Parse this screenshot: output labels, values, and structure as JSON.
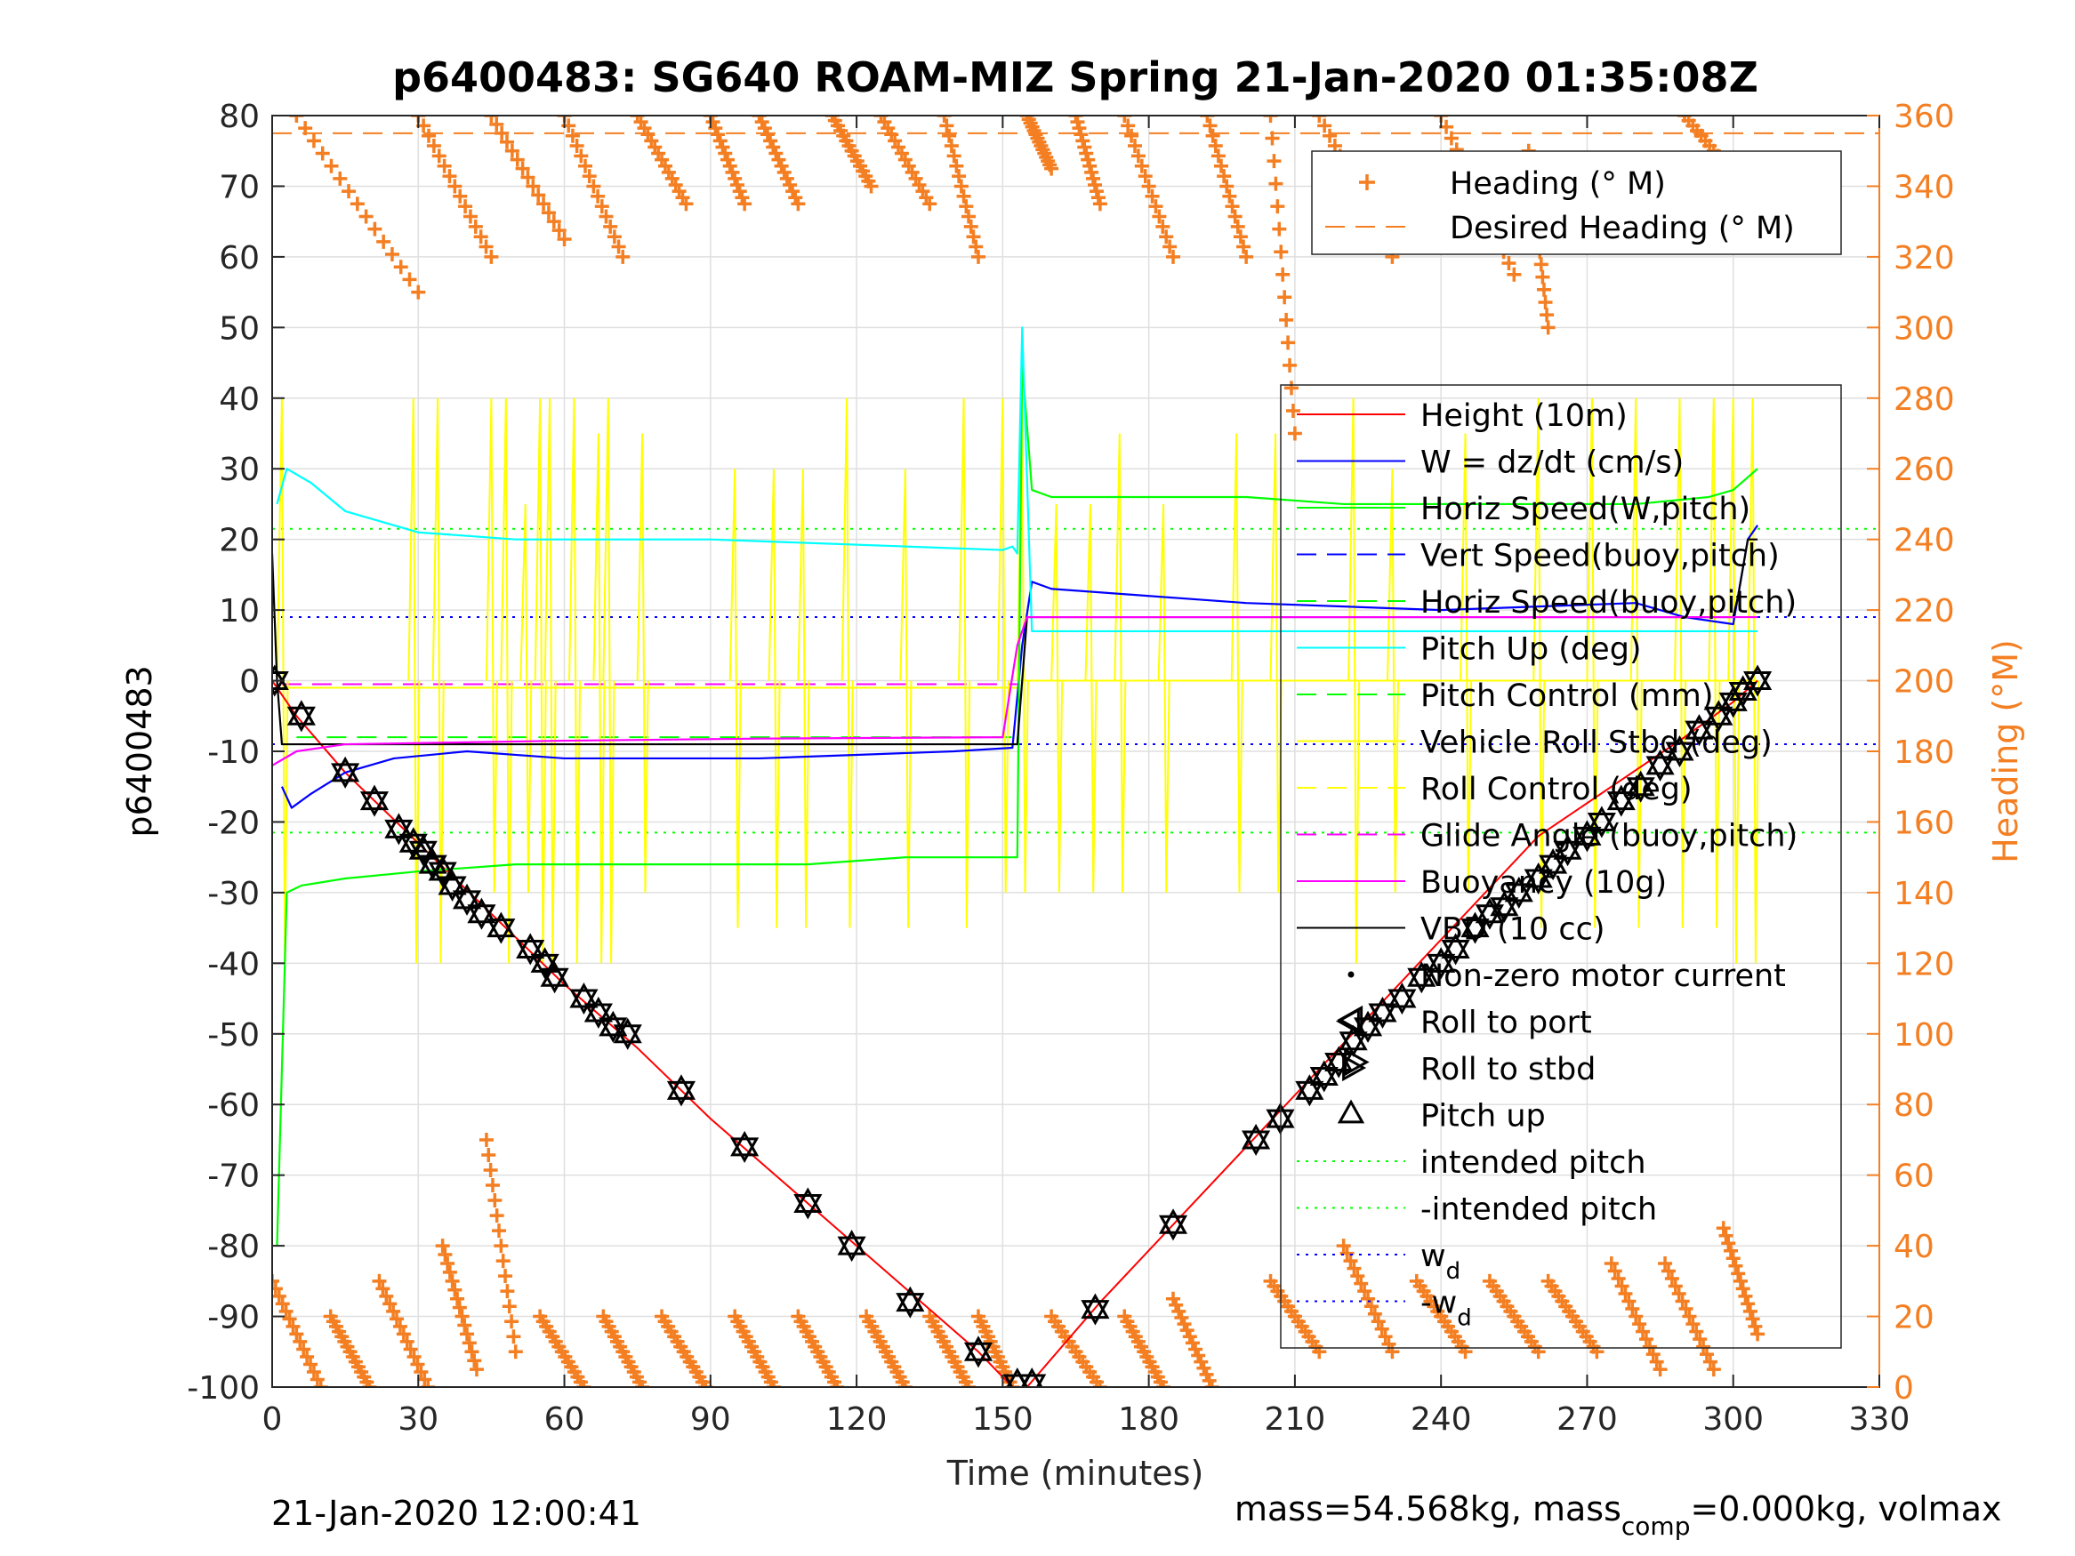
{
  "chart_data": {
    "type": "line",
    "title": "p6400483: SG640 ROAM-MIZ Spring 21-Jan-2020 01:35:08Z",
    "xlabel": "Time (minutes)",
    "ylabel": "p6400483",
    "y2label": "Heading (°M)",
    "xlim": [
      0,
      330
    ],
    "ylim": [
      -100,
      80
    ],
    "y2lim": [
      0,
      360
    ],
    "xticks": [
      0,
      30,
      60,
      90,
      120,
      150,
      180,
      210,
      240,
      270,
      300,
      330
    ],
    "yticks": [
      -100,
      -90,
      -80,
      -70,
      -60,
      -50,
      -40,
      -30,
      -20,
      -10,
      0,
      10,
      20,
      30,
      40,
      50,
      60,
      70,
      80
    ],
    "y2ticks": [
      0,
      20,
      40,
      60,
      80,
      100,
      120,
      140,
      160,
      180,
      200,
      220,
      240,
      260,
      280,
      300,
      320,
      340,
      360
    ],
    "grid": true,
    "footer_left": "21-Jan-2020 12:00:41",
    "footer_right": {
      "a": "mass=54.568kg, mass",
      "sub": "comp",
      "b": "=0.000kg, volmax"
    },
    "heading_legend": {
      "placement": "top-right",
      "entries": [
        {
          "label": "Heading (° M)",
          "color": "#f47f22",
          "marker": "plus"
        },
        {
          "label": "Desired Heading (° M)",
          "color": "#f47f22",
          "style": "dash"
        }
      ]
    },
    "main_legend": {
      "placement": "right",
      "entries": [
        {
          "label": "Height (10m)",
          "color": "#ff0000",
          "style": "solid"
        },
        {
          "label": "W = dz/dt (cm/s)",
          "color": "#0000ff",
          "style": "solid"
        },
        {
          "label": "Horiz Speed(W,pitch)",
          "color": "#00ff00",
          "style": "solid"
        },
        {
          "label": "Vert Speed(buoy,pitch)",
          "color": "#0000ff",
          "style": "dash"
        },
        {
          "label": "Horiz Speed(buoy,pitch)",
          "color": "#00ff00",
          "style": "dash"
        },
        {
          "label": "Pitch Up (deg)",
          "color": "#00ffff",
          "style": "solid"
        },
        {
          "label": "Pitch Control (mm)",
          "color": "#00ff00",
          "style": "dash"
        },
        {
          "label": "Vehicle Roll Stbd (deg)",
          "color": "#ffff00",
          "style": "solid"
        },
        {
          "label": "Roll Control (deg)",
          "color": "#ffff00",
          "style": "dash"
        },
        {
          "label": "Glide Angle (buoy,pitch)",
          "color": "#ff00ff",
          "style": "dash"
        },
        {
          "label": "Buoyancy (10g)",
          "color": "#ff00ff",
          "style": "solid"
        },
        {
          "label": "VBD (10 cc)",
          "color": "#000000",
          "style": "solid"
        },
        {
          "label": "Non-zero motor current",
          "color": "#000000",
          "marker": "dot"
        },
        {
          "label": "Roll to port",
          "color": "#000000",
          "marker": "tri-left"
        },
        {
          "label": "Roll to stbd",
          "color": "#000000",
          "marker": "tri-right"
        },
        {
          "label": "Pitch up",
          "color": "#000000",
          "marker": "tri-up"
        },
        {
          "label": "intended pitch",
          "color": "#00ff00",
          "style": "dot"
        },
        {
          "label": "-intended pitch",
          "color": "#00ff00",
          "style": "dot"
        },
        {
          "label": "w",
          "sub": "d",
          "color": "#0000ff",
          "style": "dot"
        },
        {
          "label": "-w",
          "sub": "d",
          "color": "#0000ff",
          "style": "dot"
        }
      ]
    },
    "series": [
      {
        "name": "Height (10m)",
        "color": "#ff0000",
        "x": [
          0,
          5,
          10,
          15,
          30,
          45,
          60,
          75,
          90,
          105,
          120,
          135,
          145,
          152,
          155,
          170,
          185,
          200,
          215,
          230,
          245,
          260,
          275,
          290,
          300,
          305
        ],
        "y": [
          0,
          -5,
          -9,
          -13,
          -23,
          -33,
          -43,
          -52,
          -62,
          -71,
          -80,
          -89,
          -95,
          -100,
          -100,
          -88,
          -77,
          -66,
          -55,
          -44,
          -33,
          -22,
          -15,
          -8,
          -3,
          0
        ]
      },
      {
        "name": "W = dz/dt (cm/s)",
        "color": "#0000ff",
        "x": [
          2,
          4,
          8,
          15,
          25,
          40,
          60,
          80,
          100,
          120,
          140,
          152,
          154,
          156,
          160,
          180,
          200,
          220,
          240,
          260,
          280,
          290,
          300,
          303,
          305
        ],
        "y": [
          -15,
          -18,
          -16,
          -13,
          -11,
          -10,
          -11,
          -11,
          -11,
          -10.5,
          -10,
          -9.5,
          5,
          14,
          13,
          12,
          11,
          10.5,
          10,
          10.5,
          11,
          9,
          8,
          20,
          22
        ]
      },
      {
        "name": "Horiz Speed(W,pitch)",
        "color": "#00ff00",
        "x": [
          1,
          3,
          6,
          15,
          30,
          50,
          70,
          90,
          110,
          130,
          150,
          153,
          154,
          156,
          160,
          180,
          200,
          220,
          240,
          260,
          280,
          295,
          300,
          305
        ],
        "y": [
          -80,
          -30,
          -29,
          -28,
          -27,
          -26,
          -26,
          -26,
          -26,
          -25,
          -25,
          -25,
          45,
          27,
          26,
          26,
          26,
          25,
          25,
          25,
          25,
          26,
          27,
          30
        ]
      },
      {
        "name": "Pitch Up (deg)",
        "color": "#00ffff",
        "x": [
          1,
          3,
          8,
          15,
          25,
          30,
          50,
          70,
          90,
          110,
          130,
          150,
          152,
          153,
          154,
          156,
          160,
          200,
          250,
          300,
          305
        ],
        "y": [
          25,
          30,
          28,
          24,
          22,
          21,
          20,
          20,
          20,
          19.5,
          19,
          18.5,
          19,
          18,
          50,
          7,
          7,
          7,
          7,
          7,
          7
        ]
      },
      {
        "name": "VBD (10 cc)",
        "color": "#000000",
        "x": [
          0,
          1,
          2,
          5,
          150,
          153,
          155,
          300,
          301,
          303,
          305
        ],
        "y": [
          18,
          0,
          -9,
          -9,
          -9,
          -9,
          9,
          9,
          12,
          20,
          20
        ]
      },
      {
        "name": "Buoyancy (10g)",
        "color": "#ff00ff",
        "x": [
          0,
          5,
          15,
          60,
          100,
          150,
          153,
          155,
          300,
          305
        ],
        "y": [
          -12,
          -10,
          -9,
          -8.5,
          -8.2,
          -8,
          5,
          9,
          9,
          9
        ]
      }
    ],
    "reference_lines": {
      "intended_pitch": 21.5,
      "neg_intended_pitch": -21.5,
      "w_d": 9,
      "neg_w_d": -9,
      "pitch_control": -8,
      "glide_angle": -0.5,
      "desired_heading": 355
    },
    "heading_tracks": [
      {
        "x0": 5,
        "h0": 360,
        "x1": 30,
        "h1": 310
      },
      {
        "x0": 30,
        "h0": 360,
        "x1": 45,
        "h1": 320
      },
      {
        "x0": 45,
        "h0": 360,
        "x1": 60,
        "h1": 325
      },
      {
        "x0": 60,
        "h0": 360,
        "x1": 72,
        "h1": 320
      },
      {
        "x0": 75,
        "h0": 360,
        "x1": 85,
        "h1": 335
      },
      {
        "x0": 90,
        "h0": 360,
        "x1": 97,
        "h1": 335
      },
      {
        "x0": 100,
        "h0": 360,
        "x1": 108,
        "h1": 335
      },
      {
        "x0": 115,
        "h0": 360,
        "x1": 123,
        "h1": 340
      },
      {
        "x0": 125,
        "h0": 360,
        "x1": 135,
        "h1": 335
      },
      {
        "x0": 138,
        "h0": 360,
        "x1": 145,
        "h1": 320
      },
      {
        "x0": 155,
        "h0": 360,
        "x1": 160,
        "h1": 345
      },
      {
        "x0": 165,
        "h0": 360,
        "x1": 170,
        "h1": 335
      },
      {
        "x0": 175,
        "h0": 360,
        "x1": 185,
        "h1": 320
      },
      {
        "x0": 192,
        "h0": 360,
        "x1": 200,
        "h1": 320
      },
      {
        "x0": 205,
        "h0": 360,
        "x1": 210,
        "h1": 270
      },
      {
        "x0": 215,
        "h0": 360,
        "x1": 230,
        "h1": 320
      },
      {
        "x0": 240,
        "h0": 360,
        "x1": 255,
        "h1": 315
      },
      {
        "x0": 258,
        "h0": 350,
        "x1": 262,
        "h1": 300
      },
      {
        "x0": 290,
        "h0": 360,
        "x1": 302,
        "h1": 340
      },
      {
        "x0": 0,
        "h0": 30,
        "x1": 10,
        "h1": 0
      },
      {
        "x0": 12,
        "h0": 20,
        "x1": 20,
        "h1": 0
      },
      {
        "x0": 22,
        "h0": 30,
        "x1": 32,
        "h1": 0
      },
      {
        "x0": 35,
        "h0": 40,
        "x1": 42,
        "h1": 5
      },
      {
        "x0": 44,
        "h0": 70,
        "x1": 50,
        "h1": 10
      },
      {
        "x0": 55,
        "h0": 20,
        "x1": 64,
        "h1": 0
      },
      {
        "x0": 68,
        "h0": 20,
        "x1": 76,
        "h1": 0
      },
      {
        "x0": 80,
        "h0": 20,
        "x1": 89,
        "h1": 0
      },
      {
        "x0": 95,
        "h0": 20,
        "x1": 103,
        "h1": 0
      },
      {
        "x0": 108,
        "h0": 20,
        "x1": 116,
        "h1": 0
      },
      {
        "x0": 122,
        "h0": 20,
        "x1": 130,
        "h1": 0
      },
      {
        "x0": 135,
        "h0": 20,
        "x1": 143,
        "h1": 0
      },
      {
        "x0": 145,
        "h0": 20,
        "x1": 152,
        "h1": 0
      },
      {
        "x0": 160,
        "h0": 20,
        "x1": 170,
        "h1": 0
      },
      {
        "x0": 175,
        "h0": 20,
        "x1": 183,
        "h1": 0
      },
      {
        "x0": 185,
        "h0": 25,
        "x1": 193,
        "h1": 0
      },
      {
        "x0": 205,
        "h0": 30,
        "x1": 215,
        "h1": 10
      },
      {
        "x0": 220,
        "h0": 40,
        "x1": 230,
        "h1": 10
      },
      {
        "x0": 235,
        "h0": 30,
        "x1": 245,
        "h1": 10
      },
      {
        "x0": 250,
        "h0": 30,
        "x1": 260,
        "h1": 10
      },
      {
        "x0": 262,
        "h0": 30,
        "x1": 272,
        "h1": 10
      },
      {
        "x0": 275,
        "h0": 35,
        "x1": 285,
        "h1": 5
      },
      {
        "x0": 286,
        "h0": 35,
        "x1": 296,
        "h1": 5
      },
      {
        "x0": 298,
        "h0": 45,
        "x1": 305,
        "h1": 15
      }
    ],
    "pitch_up_markers": [
      {
        "x": 0.5,
        "y": 0
      },
      {
        "x": 6,
        "y": -5
      },
      {
        "x": 15,
        "y": -13
      },
      {
        "x": 21,
        "y": -17
      },
      {
        "x": 26,
        "y": -21
      },
      {
        "x": 29,
        "y": -23
      },
      {
        "x": 31,
        "y": -24
      },
      {
        "x": 33,
        "y": -26
      },
      {
        "x": 35,
        "y": -27
      },
      {
        "x": 37,
        "y": -29
      },
      {
        "x": 40,
        "y": -31
      },
      {
        "x": 43,
        "y": -33
      },
      {
        "x": 47,
        "y": -35
      },
      {
        "x": 53,
        "y": -38
      },
      {
        "x": 56,
        "y": -40
      },
      {
        "x": 58,
        "y": -42
      },
      {
        "x": 64,
        "y": -45
      },
      {
        "x": 67,
        "y": -47
      },
      {
        "x": 70,
        "y": -49
      },
      {
        "x": 73,
        "y": -50
      },
      {
        "x": 84,
        "y": -58
      },
      {
        "x": 97,
        "y": -66
      },
      {
        "x": 110,
        "y": -74
      },
      {
        "x": 119,
        "y": -80
      },
      {
        "x": 131,
        "y": -88
      },
      {
        "x": 145,
        "y": -95
      },
      {
        "x": 153,
        "y": -99.5
      },
      {
        "x": 156,
        "y": -99.5
      },
      {
        "x": 169,
        "y": -89
      },
      {
        "x": 185,
        "y": -77
      },
      {
        "x": 202,
        "y": -65
      },
      {
        "x": 207,
        "y": -62
      },
      {
        "x": 213,
        "y": -58
      },
      {
        "x": 216,
        "y": -56
      },
      {
        "x": 219,
        "y": -54
      },
      {
        "x": 222,
        "y": -51
      },
      {
        "x": 225,
        "y": -49
      },
      {
        "x": 228,
        "y": -47
      },
      {
        "x": 232,
        "y": -45
      },
      {
        "x": 236,
        "y": -42
      },
      {
        "x": 240,
        "y": -40
      },
      {
        "x": 243,
        "y": -38
      },
      {
        "x": 247,
        "y": -35
      },
      {
        "x": 250,
        "y": -33
      },
      {
        "x": 253,
        "y": -32
      },
      {
        "x": 256,
        "y": -30
      },
      {
        "x": 260,
        "y": -28
      },
      {
        "x": 263,
        "y": -26
      },
      {
        "x": 266,
        "y": -24
      },
      {
        "x": 270,
        "y": -22
      },
      {
        "x": 273,
        "y": -20
      },
      {
        "x": 277,
        "y": -17
      },
      {
        "x": 281,
        "y": -15
      },
      {
        "x": 285,
        "y": -12
      },
      {
        "x": 289,
        "y": -10
      },
      {
        "x": 293,
        "y": -7
      },
      {
        "x": 297,
        "y": -5
      },
      {
        "x": 300,
        "y": -3
      },
      {
        "x": 302,
        "y": -1.5
      },
      {
        "x": 305,
        "y": 0
      }
    ],
    "roll_to_port_markers": [
      {
        "x": 222,
        "y": -48
      }
    ],
    "roll_to_stbd_markers": [
      {
        "x": 222,
        "y": -54
      }
    ],
    "roll_control_spikes": [
      {
        "x": 2,
        "lo": -40,
        "hi": 40
      },
      {
        "x": 29,
        "lo": -40,
        "hi": 40
      },
      {
        "x": 34,
        "lo": -40,
        "hi": 40
      },
      {
        "x": 45,
        "lo": -30,
        "hi": 40
      },
      {
        "x": 48,
        "lo": -40,
        "hi": 40
      },
      {
        "x": 52,
        "lo": -30,
        "hi": 25
      },
      {
        "x": 55,
        "lo": -40,
        "hi": 40
      },
      {
        "x": 57,
        "lo": -40,
        "hi": 40
      },
      {
        "x": 62,
        "lo": -40,
        "hi": 40
      },
      {
        "x": 67,
        "lo": -40,
        "hi": 35
      },
      {
        "x": 69,
        "lo": -40,
        "hi": 40
      },
      {
        "x": 76,
        "lo": -30,
        "hi": 35
      },
      {
        "x": 95,
        "lo": -35,
        "hi": 30
      },
      {
        "x": 103,
        "lo": -35,
        "hi": 30
      },
      {
        "x": 109,
        "lo": -35,
        "hi": 30
      },
      {
        "x": 118,
        "lo": -35,
        "hi": 40
      },
      {
        "x": 130,
        "lo": -35,
        "hi": 30
      },
      {
        "x": 142,
        "lo": -35,
        "hi": 40
      },
      {
        "x": 150,
        "lo": -30,
        "hi": 40
      },
      {
        "x": 154,
        "lo": -30,
        "hi": 40
      },
      {
        "x": 161,
        "lo": -30,
        "hi": 25
      },
      {
        "x": 168,
        "lo": -30,
        "hi": 25
      },
      {
        "x": 174,
        "lo": -30,
        "hi": 35
      },
      {
        "x": 183,
        "lo": -30,
        "hi": 25
      },
      {
        "x": 198,
        "lo": -30,
        "hi": 35
      },
      {
        "x": 206,
        "lo": -30,
        "hi": 35
      },
      {
        "x": 222,
        "lo": -40,
        "hi": 40
      },
      {
        "x": 230,
        "lo": -30,
        "hi": 30
      },
      {
        "x": 245,
        "lo": -30,
        "hi": 35
      },
      {
        "x": 260,
        "lo": -35,
        "hi": 40
      },
      {
        "x": 271,
        "lo": -35,
        "hi": 40
      },
      {
        "x": 280,
        "lo": -35,
        "hi": 40
      },
      {
        "x": 289,
        "lo": -35,
        "hi": 40
      },
      {
        "x": 296,
        "lo": -35,
        "hi": 40
      },
      {
        "x": 300,
        "lo": -40,
        "hi": 40
      },
      {
        "x": 304,
        "lo": -40,
        "hi": 40
      }
    ]
  }
}
